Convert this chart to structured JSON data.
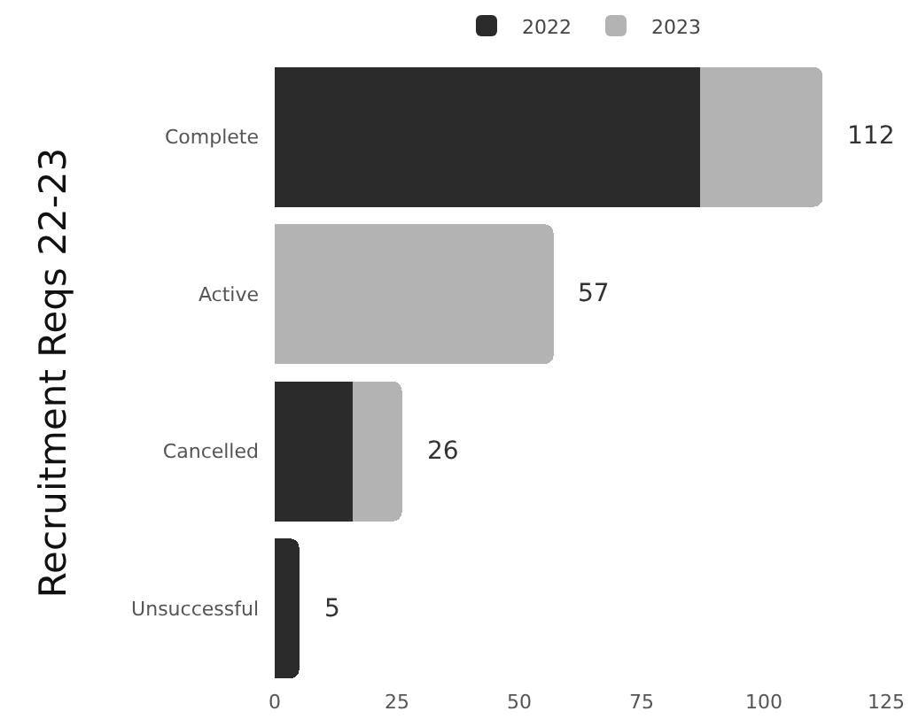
{
  "chart_data": {
    "type": "bar",
    "orientation": "horizontal",
    "stacked": true,
    "ylabel": "Recruitment Reqs 22-23",
    "categories": [
      "Complete",
      "Active",
      "Cancelled",
      "Unsuccessful"
    ],
    "series": [
      {
        "name": "2022",
        "color": "#2b2b2b",
        "values": [
          87,
          null,
          16,
          5
        ]
      },
      {
        "name": "2023",
        "color": "#b3b3b3",
        "values": [
          25,
          57,
          10,
          null
        ]
      }
    ],
    "totals": [
      "112",
      "57",
      "26",
      "5"
    ],
    "xlim": [
      0,
      125
    ],
    "xticks": [
      0,
      25,
      50,
      75,
      100,
      125
    ],
    "legend": "top"
  }
}
